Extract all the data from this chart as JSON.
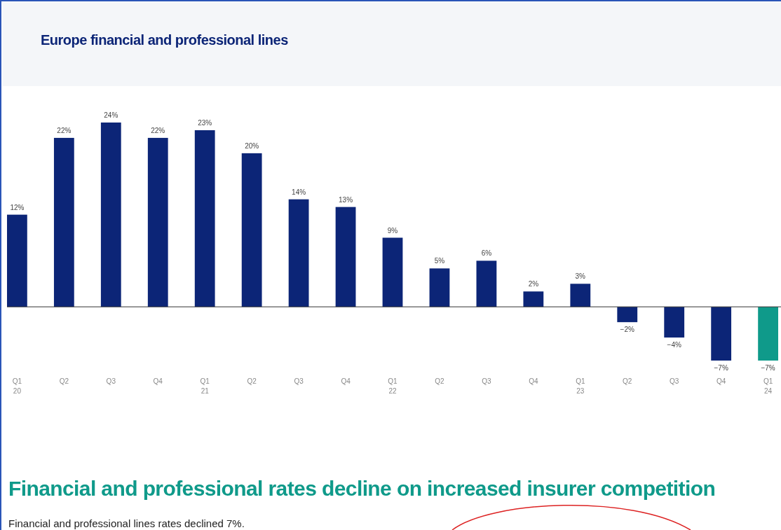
{
  "chart_data": {
    "type": "bar",
    "title": "Europe financial and professional lines",
    "categories": [
      "Q1\n20",
      "Q2",
      "Q3",
      "Q4",
      "Q1\n21",
      "Q2",
      "Q3",
      "Q4",
      "Q1\n22",
      "Q2",
      "Q3",
      "Q4",
      "Q1\n23",
      "Q2",
      "Q3",
      "Q4",
      "Q1\n24"
    ],
    "values": [
      12,
      22,
      24,
      22,
      23,
      20,
      14,
      13,
      9,
      5,
      6,
      2,
      3,
      -2,
      -4,
      -7,
      -7
    ],
    "value_labels": [
      "12%",
      "22%",
      "24%",
      "22%",
      "23%",
      "20%",
      "14%",
      "13%",
      "9%",
      "5%",
      "6%",
      "2%",
      "3%",
      "−2%",
      "−4%",
      "−7%",
      "−7%"
    ],
    "colors": [
      "#0c2577",
      "#0c2577",
      "#0c2577",
      "#0c2577",
      "#0c2577",
      "#0c2577",
      "#0c2577",
      "#0c2577",
      "#0c2577",
      "#0c2577",
      "#0c2577",
      "#0c2577",
      "#0c2577",
      "#0c2577",
      "#0c2577",
      "#0c2577",
      "#0f9a8a"
    ],
    "relative": false,
    "ylim": [
      -7,
      24
    ],
    "annotations": [
      "Financial and professional rates decline on increased insurer competition",
      "Financial and professional lines rates declined 7%."
    ]
  }
}
